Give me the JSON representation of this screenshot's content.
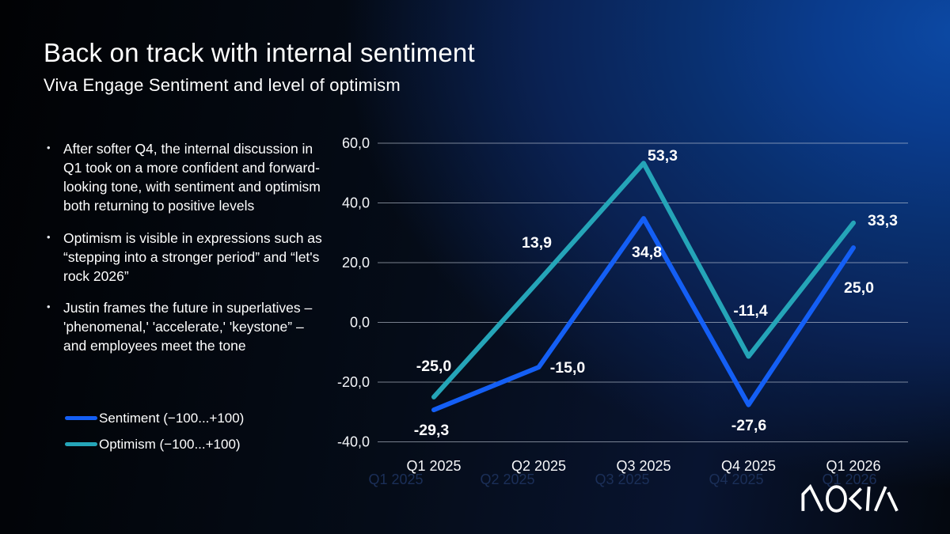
{
  "slide": {
    "title": "Back on track with internal sentiment",
    "subtitle": "Viva Engage Sentiment and level of optimism",
    "bullets": [
      "After softer Q4, the internal discussion in Q1 took on a more confident and forward-looking tone, with sentiment and optimism both returning to positive levels",
      "Optimism is visible in expressions such as “stepping into a stronger period” and “let's rock 2026”",
      "Justin frames the future in superlatives – 'phenomenal,' 'accelerate,' 'keystone” – and employees meet the tone"
    ],
    "brand": "NOKIA"
  },
  "legend": [
    {
      "label": "Sentiment (−100...+100)",
      "color": "#145ff5"
    },
    {
      "label": "Optimism (−100...+100)",
      "color": "#25a5b8"
    }
  ],
  "chart_data": {
    "type": "line",
    "categories": [
      "Q1 2025",
      "Q2 2025",
      "Q3 2025",
      "Q4 2025",
      "Q1 2026"
    ],
    "series": [
      {
        "name": "Sentiment (−100...+100)",
        "color": "#145ff5",
        "values": [
          -29.3,
          -15.0,
          34.8,
          -27.6,
          25.0
        ],
        "labels": [
          "-29,3",
          "-15,0",
          "34,8",
          "-27,6",
          "25,0"
        ]
      },
      {
        "name": "Optimism (−100...+100)",
        "color": "#25a5b8",
        "values": [
          -25.0,
          13.9,
          53.3,
          -11.4,
          33.3
        ],
        "labels": [
          "-25,0",
          "13,9",
          "53,3",
          "-11,4",
          "33,3"
        ]
      }
    ],
    "y_ticks": [
      60,
      40,
      20,
      0,
      -20,
      -40
    ],
    "y_tick_labels": [
      "60,0",
      "40,0",
      "20,0",
      "0,0",
      "-20,0",
      "-40,0"
    ],
    "ylim": [
      -40,
      60
    ],
    "grid": true,
    "legend_position": "bottom-left",
    "ghost_axis_colors": "#1b2f58"
  }
}
